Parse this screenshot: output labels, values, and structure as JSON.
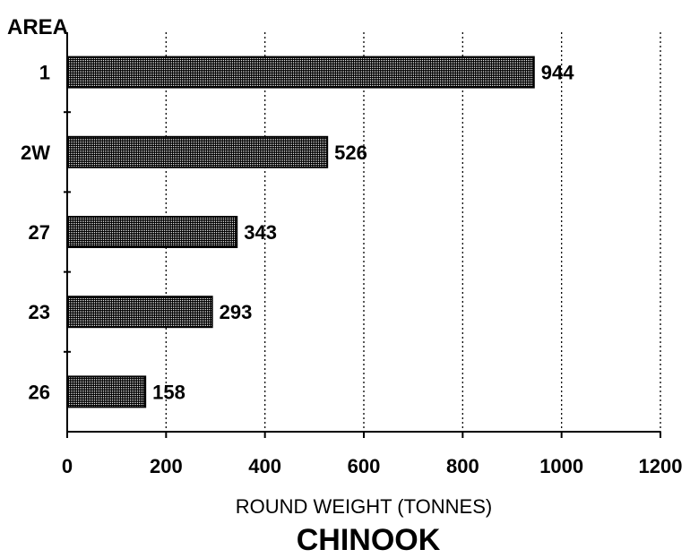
{
  "chart_data": {
    "type": "bar",
    "orientation": "horizontal",
    "categories": [
      "1",
      "2W",
      "27",
      "23",
      "26"
    ],
    "values": [
      944,
      526,
      343,
      293,
      158
    ],
    "title": "CHINOOK",
    "xlabel": "ROUND WEIGHT (TONNES)",
    "ylabel": "AREA",
    "xlim": [
      0,
      1200
    ],
    "xticks": [
      0,
      200,
      400,
      600,
      800,
      1000,
      1200
    ],
    "grid": "vertical dotted",
    "legend": "none",
    "bar_fill": "#555555"
  }
}
